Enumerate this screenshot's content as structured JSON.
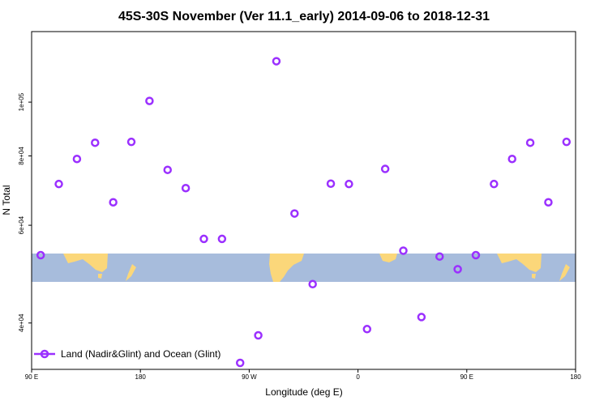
{
  "chart_data": {
    "type": "scatter",
    "title": "45S-30S November (Ver 11.1_early)   2014-09-06 to 2018-12-31",
    "xlabel": "Longitude (deg E)",
    "ylabel": "N Total",
    "xlim": [
      90,
      540
    ],
    "ylog": true,
    "ylim": [
      33000,
      134000
    ],
    "x_ticks": [
      {
        "value": 90,
        "label": "90 E"
      },
      {
        "value": 180,
        "label": "180"
      },
      {
        "value": 270,
        "label": "90 W"
      },
      {
        "value": 360,
        "label": "0"
      },
      {
        "value": 450,
        "label": "90 E"
      },
      {
        "value": 540,
        "label": "180"
      }
    ],
    "y_ticks": [
      {
        "value": 40000,
        "label": "4e+04"
      },
      {
        "value": 60000,
        "label": "6e+04"
      },
      {
        "value": 80000,
        "label": "8e+04"
      },
      {
        "value": 100000,
        "label": "1e+05"
      }
    ],
    "grid": false,
    "legend": {
      "position": "bottom-left"
    },
    "series": [
      {
        "name": "Land (Nadir&Glint) and Ocean (Glint)",
        "color": "#9b30ff",
        "marker": "open-circle",
        "x": [
          97.5,
          112.5,
          127.5,
          142.5,
          157.5,
          172.5,
          187.5,
          202.5,
          217.5,
          232.5,
          247.5,
          262.5,
          277.5,
          292.5,
          307.5,
          322.5,
          337.5,
          352.5,
          367.5,
          382.5,
          397.5,
          412.5,
          427.5,
          442.5,
          457.5,
          472.5,
          487.5,
          502.5,
          517.5,
          532.5
        ],
        "y": [
          53000,
          71200,
          79000,
          84500,
          66000,
          84800,
          100500,
          75500,
          70000,
          56700,
          56700,
          33900,
          38000,
          118500,
          63000,
          47000,
          71300,
          71200,
          39000,
          75800,
          54000,
          41000,
          52700,
          50000,
          53000,
          71200,
          79000,
          84500,
          66000,
          84800
        ]
      }
    ]
  }
}
